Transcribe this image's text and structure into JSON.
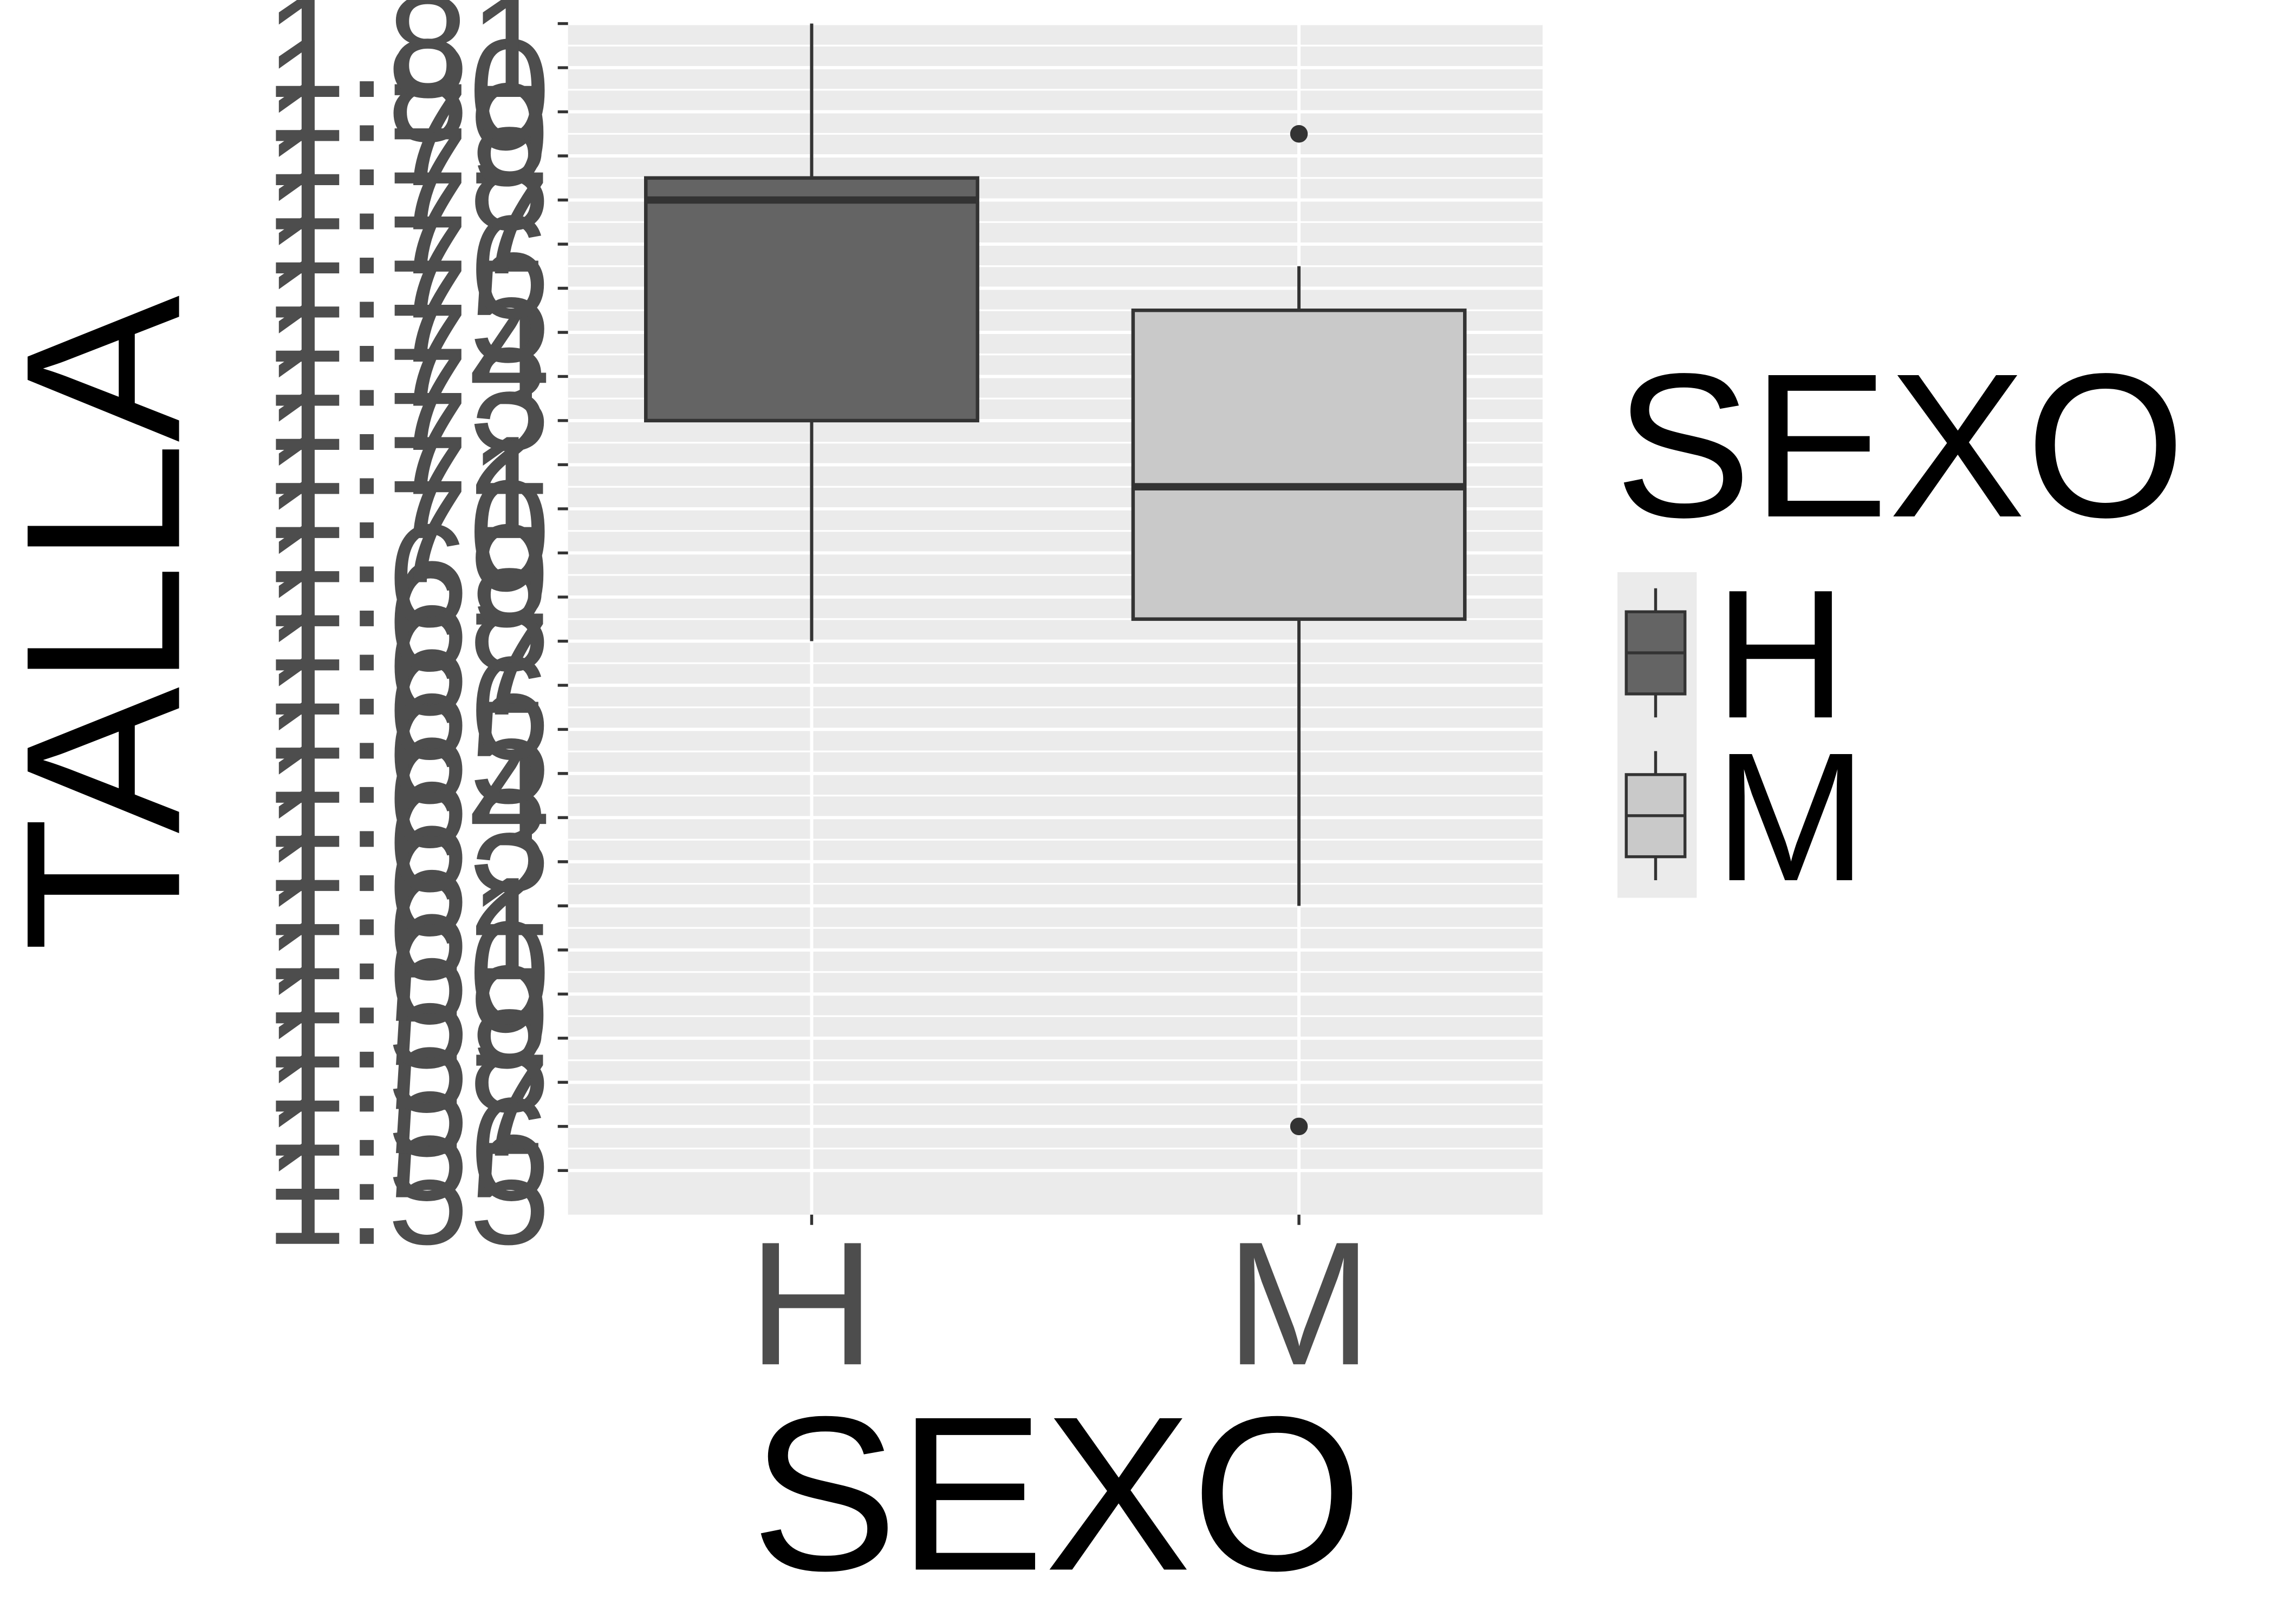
{
  "chart_data": {
    "type": "box",
    "title": "",
    "xlabel": "SEXO",
    "ylabel": "TALLA",
    "categories": [
      "H",
      "M"
    ],
    "y_tick_labels": [
      "1.55",
      "1.56",
      "1.57",
      "1.58",
      "1.59",
      "1.60",
      "1.61",
      "1.62",
      "1.63",
      "1.64",
      "1.65",
      "1.66",
      "1.67",
      "1.68",
      "1.69",
      "1.70",
      "1.71",
      "1.72",
      "1.73",
      "1.74",
      "1.75",
      "1.76",
      "1.77",
      "1.78",
      "1.79",
      "1.80",
      "1.81"
    ],
    "ylim": [
      1.54,
      1.81
    ],
    "grid": true,
    "legend": {
      "title": "SEXO",
      "position": "right",
      "entries": [
        {
          "label": "H",
          "fill": "#646464"
        },
        {
          "label": "M",
          "fill": "#c9c9c9"
        }
      ]
    },
    "boxes": [
      {
        "category": "H",
        "whisker_low": 1.67,
        "q1": 1.72,
        "median": 1.77,
        "q3": 1.775,
        "whisker_high": 1.81,
        "outliers": [],
        "fill": "#646464"
      },
      {
        "category": "M",
        "whisker_low": 1.61,
        "q1": 1.675,
        "median": 1.705,
        "q3": 1.745,
        "whisker_high": 1.755,
        "outliers": [
          1.56,
          1.785
        ],
        "fill": "#c9c9c9"
      }
    ],
    "colors": {
      "panel": "#ebebeb",
      "grid": "#ffffff",
      "box_line": "#333333",
      "tick_text": "#4d4d4d"
    }
  }
}
